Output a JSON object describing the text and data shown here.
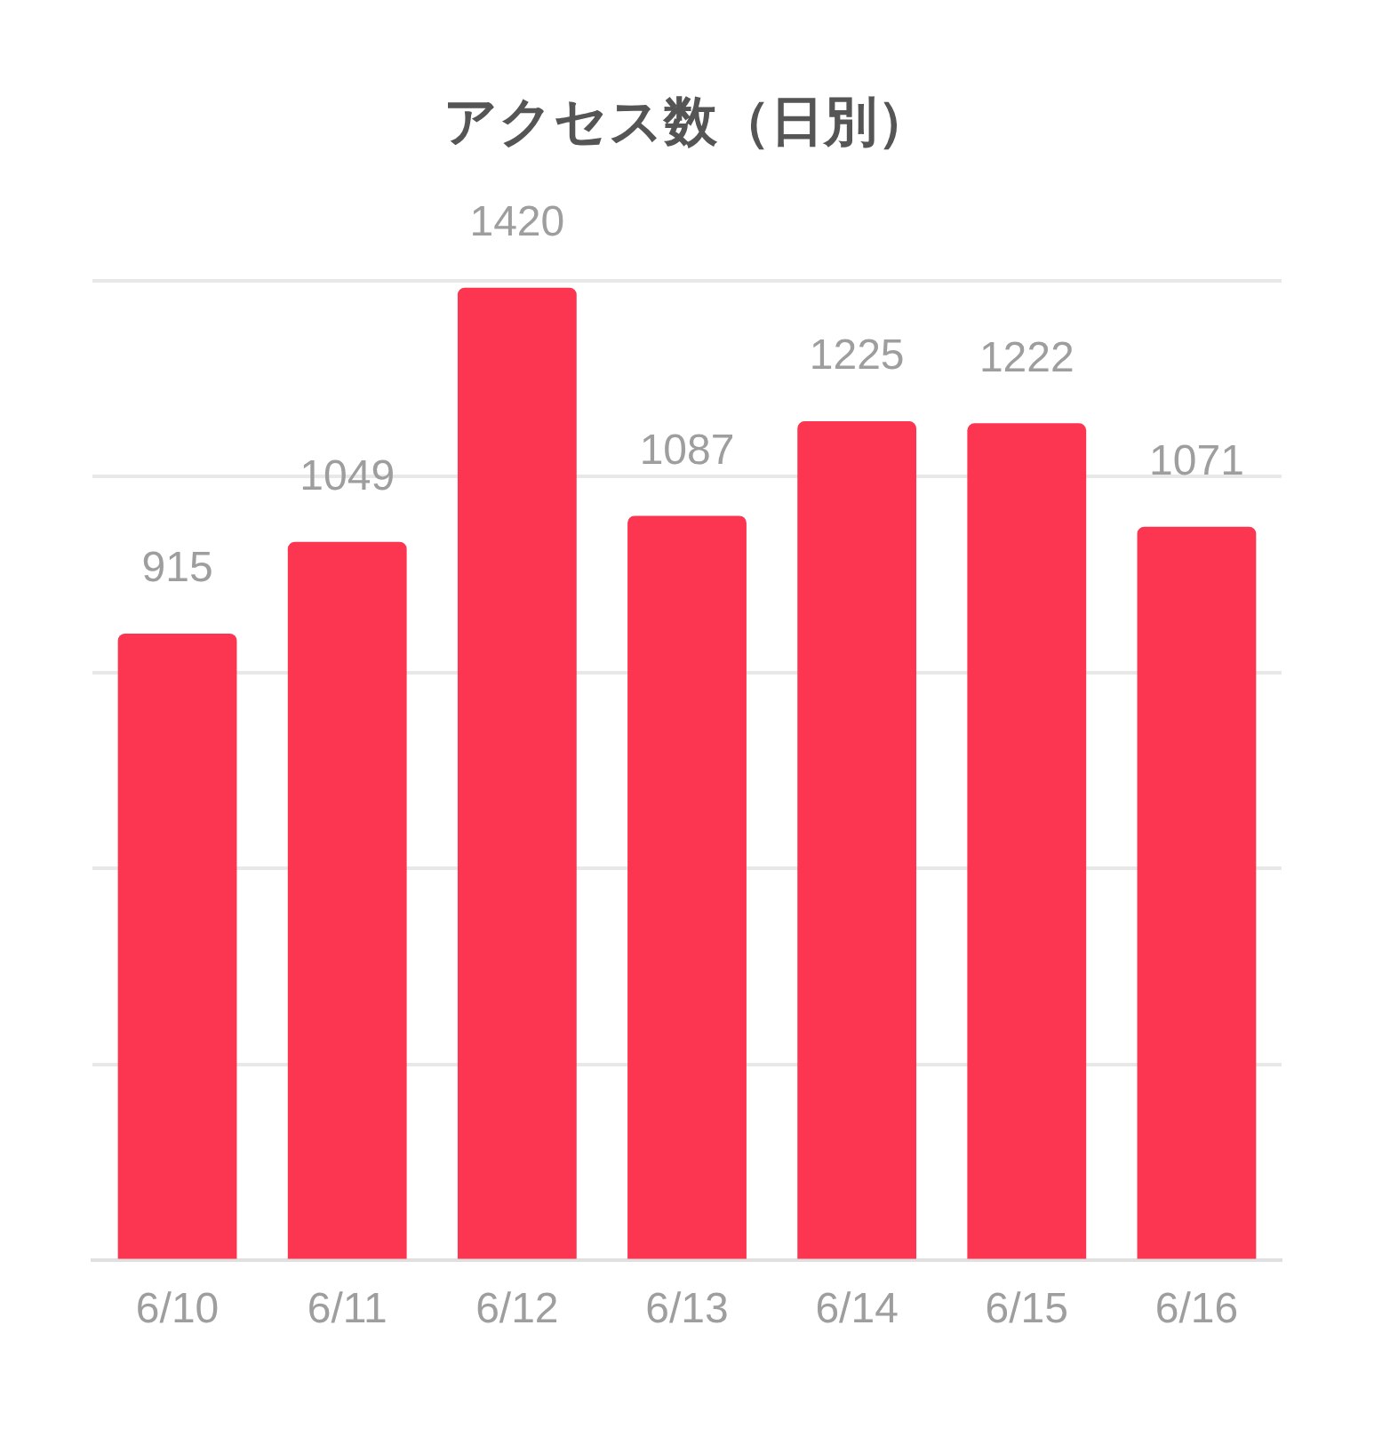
{
  "chart_data": {
    "type": "bar",
    "title": "アクセス数（日別）",
    "categories": [
      "6/10",
      "6/11",
      "6/12",
      "6/13",
      "6/14",
      "6/15",
      "6/16"
    ],
    "values": [
      915,
      1049,
      1420,
      1087,
      1225,
      1222,
      1071
    ],
    "color": "#fc3550",
    "ylim": [
      0,
      1430
    ],
    "tick_labels": "x",
    "grid": "y",
    "data_labels": true,
    "legend": false
  }
}
